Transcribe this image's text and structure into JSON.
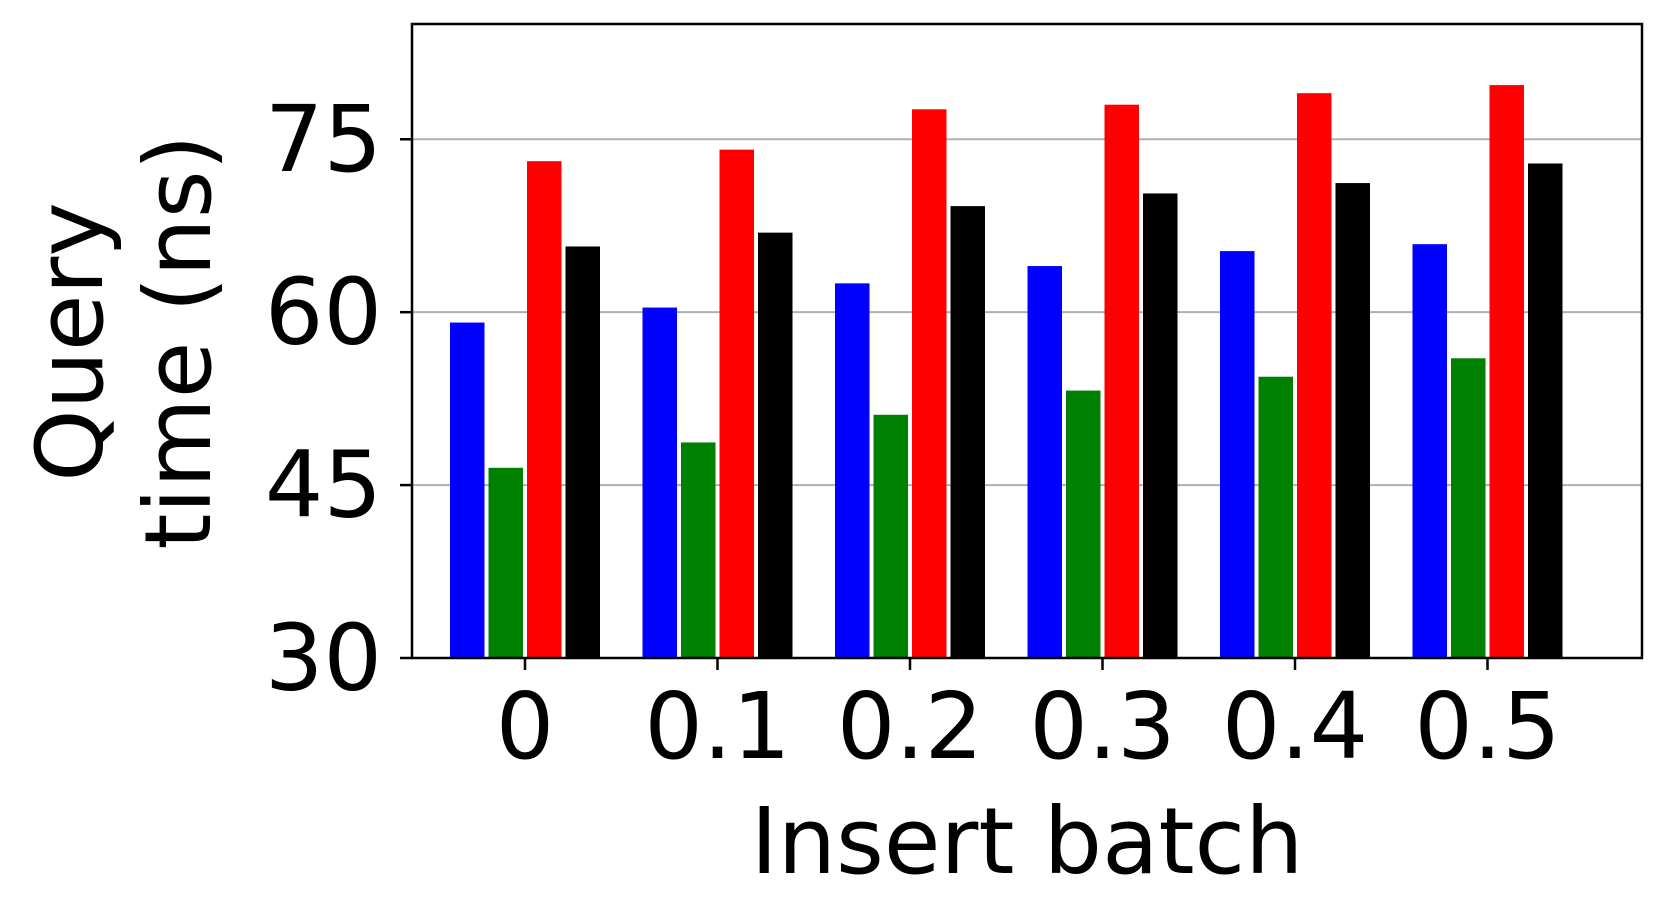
{
  "chart_data": {
    "type": "bar",
    "xlabel": "Insert batch",
    "ylabel_lines": [
      "Query",
      "time (ns)"
    ],
    "categories": [
      "0",
      "0.1",
      "0.2",
      "0.3",
      "0.4",
      "0.5"
    ],
    "ylim": [
      30,
      85
    ],
    "yticks": [
      "30",
      "45",
      "60",
      "75"
    ],
    "ytick_values": [
      30,
      45,
      60,
      75
    ],
    "grid": "horizontal",
    "legend": "none",
    "series": [
      {
        "color": "#0000ff",
        "values": [
          59.1,
          60.4,
          62.5,
          64.0,
          65.3,
          65.9
        ]
      },
      {
        "color": "#008000",
        "values": [
          46.5,
          48.7,
          51.1,
          53.2,
          54.4,
          56.0
        ]
      },
      {
        "color": "#ff0000",
        "values": [
          73.1,
          74.1,
          77.6,
          78.0,
          79.0,
          79.7
        ]
      },
      {
        "color": "#000000",
        "values": [
          65.7,
          66.9,
          69.2,
          70.3,
          71.2,
          72.9
        ]
      }
    ]
  }
}
